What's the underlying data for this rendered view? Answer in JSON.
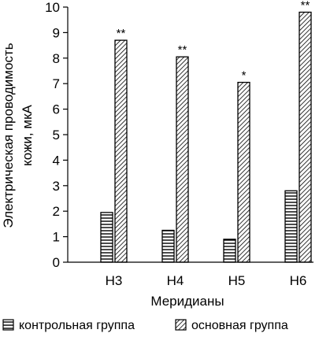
{
  "chart_data": {
    "type": "bar",
    "categories": [
      "Н3",
      "Н4",
      "Н5",
      "Н6"
    ],
    "series": [
      {
        "name": "контрольная группа",
        "pattern": "horizontal-lines",
        "values": [
          1.95,
          1.25,
          0.9,
          2.8
        ]
      },
      {
        "name": "основная группа",
        "pattern": "diagonal-hatch",
        "values": [
          8.7,
          8.05,
          7.05,
          9.8
        ]
      }
    ],
    "annotations": [
      "**",
      "**",
      "*",
      "**"
    ],
    "ylabel": [
      "Электрическая проводимость",
      "кожи, мкА"
    ],
    "xlabel": "Меридианы",
    "ylim": [
      0,
      10
    ],
    "yticks": [
      0,
      1,
      2,
      3,
      4,
      5,
      6,
      7,
      8,
      9,
      10
    ],
    "grid": false,
    "legend_position": "bottom",
    "colors": {
      "ink": "#000000",
      "fill": "#ffffff"
    }
  }
}
